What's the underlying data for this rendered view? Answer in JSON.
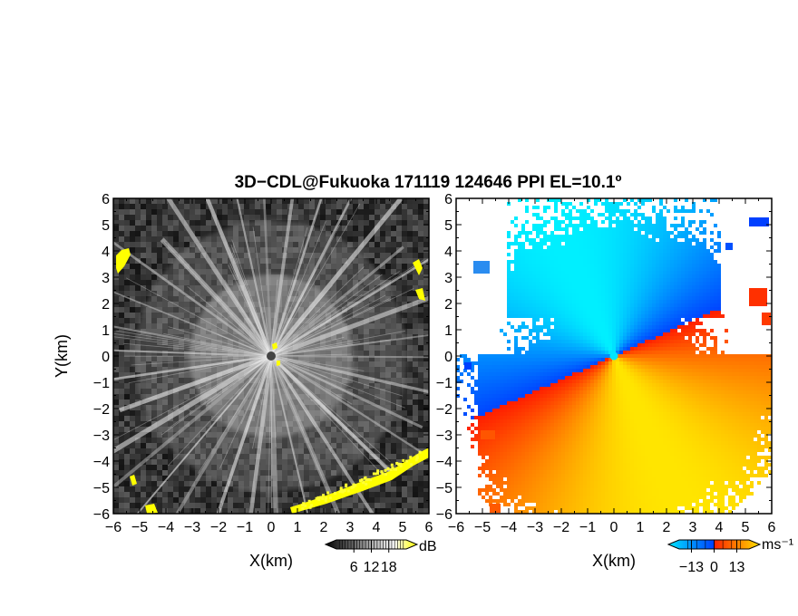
{
  "figure": {
    "title": "3D−CDL@Fukuoka 171119 124646 PPI EL=10.1º"
  },
  "chart_data": [
    {
      "type": "heatmap",
      "panel": "left",
      "description_field": "SNR",
      "xlabel": "X(km)",
      "ylabel": "Y(km)",
      "xlim": [
        -6,
        6
      ],
      "ylim": [
        -6,
        6
      ],
      "xticks": [
        "−6",
        "−5",
        "−4",
        "−3",
        "−2",
        "−1",
        "0",
        "1",
        "2",
        "3",
        "4",
        "5",
        "6"
      ],
      "yticks": [
        "6",
        "5",
        "4",
        "3",
        "2",
        "1",
        "0",
        "−1",
        "−2",
        "−3",
        "−4",
        "−5",
        "−6"
      ],
      "colorbar": {
        "unit": "dB",
        "ticks": [
          "6",
          "12",
          "18"
        ],
        "range": [
          0,
          24
        ],
        "colors": [
          "#000000",
          "#ffffff",
          "#ffff00"
        ]
      },
      "radar_center": [
        0,
        0
      ]
    },
    {
      "type": "heatmap",
      "panel": "right",
      "description_field": "Doppler velocity",
      "xlabel": "X(km)",
      "xlim": [
        -6,
        6
      ],
      "ylim": [
        -6,
        6
      ],
      "xticks": [
        "−6",
        "−5",
        "−4",
        "−3",
        "−2",
        "−1",
        "0",
        "1",
        "2",
        "3",
        "4",
        "5",
        "6"
      ],
      "yticks": [
        "6",
        "5",
        "4",
        "3",
        "2",
        "1",
        "0",
        "−1",
        "−2",
        "−3",
        "−4",
        "−5",
        "−6"
      ],
      "colorbar": {
        "unit": "ms⁻¹",
        "ticks": [
          "−13",
          "0",
          "13"
        ],
        "range": [
          -20,
          20
        ],
        "colors": [
          "#00e5ff",
          "#0040ff",
          "#ff2000",
          "#ffe000"
        ]
      },
      "radar_center": [
        0,
        0
      ]
    }
  ]
}
